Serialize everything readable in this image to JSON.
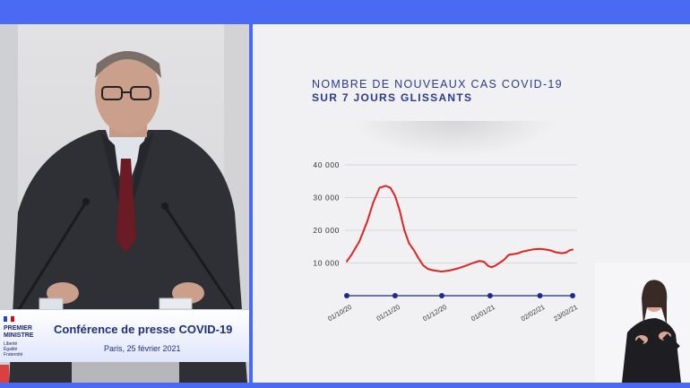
{
  "slide": {
    "title_line1": "NOMBRE DE NOUVEAUX CAS COVID-19",
    "title_line2": "SUR 7 JOURS GLISSANTS"
  },
  "chart_data": {
    "type": "line",
    "title": "NOMBRE DE NOUVEAUX CAS COVID-19 SUR 7 JOURS GLISSANTS",
    "xlabel": "",
    "ylabel": "",
    "ylim": [
      0,
      40000
    ],
    "yticks": [
      10000,
      20000,
      30000,
      40000
    ],
    "ytick_labels": [
      "10 000",
      "20 000",
      "30 000",
      "40 000"
    ],
    "grid": true,
    "legend": "none",
    "x_ticks": [
      {
        "day": 0,
        "label": "01/10/20"
      },
      {
        "day": 31,
        "label": "01/11/20"
      },
      {
        "day": 61,
        "label": "01/12/20"
      },
      {
        "day": 92,
        "label": "01/01/21"
      },
      {
        "day": 124,
        "label": "02/02/21"
      },
      {
        "day": 145,
        "label": "23/02/21"
      }
    ],
    "series": [
      {
        "color": "#e0231f",
        "x": [
          0,
          3,
          8,
          13,
          17,
          21,
          25,
          28,
          31,
          34,
          37,
          40,
          43,
          46,
          49,
          52,
          56,
          61,
          66,
          71,
          76,
          81,
          85,
          88,
          91,
          93,
          95,
          98,
          101,
          104,
          107,
          110,
          113,
          116,
          120,
          124,
          128,
          131,
          134,
          138,
          141,
          143,
          145
        ],
        "y": [
          10500,
          12500,
          16500,
          22500,
          28500,
          33000,
          33600,
          33000,
          30500,
          26000,
          20000,
          16000,
          14000,
          11500,
          9300,
          8200,
          7700,
          7400,
          7700,
          8300,
          9100,
          10000,
          10600,
          10400,
          9000,
          8700,
          9100,
          10000,
          11000,
          12500,
          12700,
          13000,
          13500,
          13800,
          14200,
          14300,
          14100,
          13800,
          13300,
          13000,
          13200,
          13900,
          14100
        ]
      }
    ]
  },
  "caption": {
    "org_line1": "PREMIER",
    "org_line2": "MINISTRE",
    "org_motto": [
      "Liberté",
      "Égalité",
      "Fraternité"
    ],
    "title": "Conférence de presse COVID-19",
    "subtitle": "Paris, 25 février 2021"
  },
  "colors": {
    "frame_blue": "#4a6af4",
    "chart_line": "#e0231f",
    "axis_navy": "#1e2a8c",
    "title_navy": "#2c3a8c"
  }
}
